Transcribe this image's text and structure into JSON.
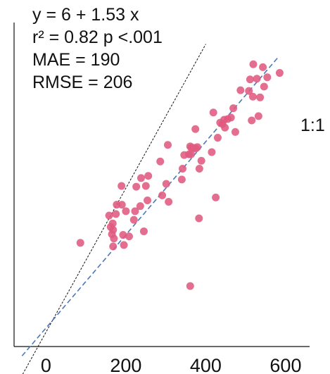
{
  "chart_data": {
    "type": "scatter",
    "title": "",
    "xlabel": "",
    "ylabel": "",
    "xlim": [
      -80,
      660
    ],
    "ylim": [
      -20,
      430
    ],
    "xticks": [
      0,
      200,
      400,
      600
    ],
    "grid": false,
    "annotations": {
      "equation": "y = 6 + 1.53 x",
      "r2_p": "r² = 0.82  p <.001",
      "mae": "MAE = 190",
      "rmse": "RMSE = 206",
      "identity_label": "1:1"
    },
    "regression": {
      "intercept": 6,
      "slope": 1.53
    },
    "colors": {
      "points": "#e05a80",
      "regression": "#4b78b8",
      "identity": "#111111"
    },
    "points": [
      [
        86,
        124
      ],
      [
        158,
        162
      ],
      [
        162,
        146
      ],
      [
        167,
        151
      ],
      [
        165,
        136
      ],
      [
        168,
        142
      ],
      [
        175,
        164
      ],
      [
        170,
        130
      ],
      [
        177,
        177
      ],
      [
        190,
        177
      ],
      [
        189,
        203
      ],
      [
        193,
        135
      ],
      [
        195,
        121
      ],
      [
        168,
        119
      ],
      [
        200,
        168
      ],
      [
        208,
        133
      ],
      [
        220,
        156
      ],
      [
        223,
        168
      ],
      [
        226,
        202
      ],
      [
        236,
        175
      ],
      [
        238,
        214
      ],
      [
        250,
        203
      ],
      [
        245,
        140
      ],
      [
        254,
        183
      ],
      [
        256,
        217
      ],
      [
        286,
        237
      ],
      [
        291,
        190
      ],
      [
        301,
        206
      ],
      [
        307,
        181
      ],
      [
        340,
        212
      ],
      [
        342,
        227
      ],
      [
        346,
        246
      ],
      [
        358,
        247
      ],
      [
        361,
        258
      ],
      [
        364,
        256
      ],
      [
        363,
        247
      ],
      [
        370,
        256
      ],
      [
        375,
        255
      ],
      [
        379,
        257
      ],
      [
        384,
        227
      ],
      [
        383,
        158
      ],
      [
        389,
        238
      ],
      [
        361,
        64
      ],
      [
        374,
        282
      ],
      [
        425,
        187
      ],
      [
        415,
        250
      ],
      [
        419,
        305
      ],
      [
        436,
        291
      ],
      [
        442,
        289
      ],
      [
        446,
        295
      ],
      [
        448,
        284
      ],
      [
        455,
        296
      ],
      [
        463,
        298
      ],
      [
        469,
        311
      ],
      [
        474,
        278
      ],
      [
        487,
        336
      ],
      [
        508,
        335
      ],
      [
        511,
        351
      ],
      [
        518,
        327
      ],
      [
        519,
        372
      ],
      [
        528,
        352
      ],
      [
        536,
        326
      ],
      [
        543,
        368
      ],
      [
        546,
        341
      ],
      [
        554,
        354
      ],
      [
        585,
        360
      ],
      [
        515,
        294
      ],
      [
        532,
        300
      ],
      [
        305,
        260
      ],
      [
        430,
        270
      ]
    ]
  }
}
